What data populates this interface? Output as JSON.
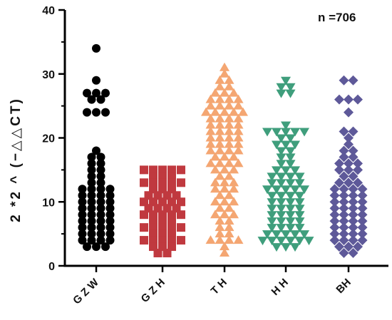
{
  "chart_data": {
    "type": "scatter",
    "title": "",
    "annotation": "n =706",
    "ylabel": "2 *2 ^ (−△△CT)",
    "xlabel": "",
    "ylim": [
      0,
      40
    ],
    "yticks": [
      "0",
      "10",
      "20",
      "30",
      "40"
    ],
    "grid": false,
    "categories": [
      "GZW",
      "GZH",
      "TH",
      "HH",
      "BH"
    ],
    "category_labels": [
      "G Z W",
      "G Z H",
      "T H",
      "H H",
      "BH"
    ],
    "series": [
      {
        "category": "GZW",
        "marker": "circle",
        "color": "#000000",
        "values": [
          34,
          29,
          27,
          27,
          27,
          26,
          26,
          24,
          24,
          24,
          18,
          17,
          17,
          16,
          16,
          15,
          15,
          14,
          14,
          13,
          13,
          12,
          12,
          12,
          12,
          11,
          11,
          11,
          11,
          10,
          10,
          10,
          10,
          9,
          9,
          9,
          9,
          8,
          8,
          8,
          8,
          7,
          7,
          7,
          7,
          6,
          6,
          6,
          6,
          5,
          5,
          5,
          5,
          4,
          4,
          4,
          4,
          3,
          3,
          3
        ]
      },
      {
        "category": "GZH",
        "marker": "square",
        "color": "#c0393f",
        "values": [
          15,
          15,
          15,
          15,
          15,
          14,
          14,
          14,
          13,
          13,
          13,
          13,
          13,
          12,
          12,
          12,
          11,
          11,
          11,
          11,
          10,
          10,
          10,
          10,
          10,
          9,
          9,
          9,
          9,
          8,
          8,
          8,
          8,
          8,
          7,
          7,
          7,
          6,
          6,
          6,
          6,
          6,
          5,
          5,
          5,
          4,
          4,
          4,
          4,
          4,
          3,
          3,
          3,
          2,
          2
        ]
      },
      {
        "category": "TH",
        "marker": "triangle-up",
        "color": "#f4a672",
        "values": [
          31,
          30,
          29,
          29,
          28,
          28,
          27,
          27,
          27,
          26,
          26,
          26,
          26,
          25,
          25,
          25,
          25,
          24,
          24,
          24,
          24,
          24,
          23,
          23,
          23,
          23,
          22,
          22,
          22,
          22,
          21,
          21,
          21,
          21,
          20,
          20,
          20,
          20,
          19,
          19,
          19,
          19,
          18,
          18,
          18,
          18,
          17,
          17,
          17,
          16,
          16,
          16,
          16,
          15,
          15,
          15,
          14,
          14,
          13,
          13,
          13,
          12,
          12,
          12,
          11,
          11,
          10,
          10,
          10,
          9,
          9,
          8,
          8,
          8,
          7,
          7,
          6,
          6,
          5,
          5,
          4,
          4,
          4,
          4,
          3,
          2
        ]
      },
      {
        "category": "HH",
        "marker": "triangle-down",
        "color": "#3f9e7c",
        "values": [
          29,
          28,
          28,
          27,
          27,
          22,
          21,
          21,
          21,
          21,
          21,
          20,
          20,
          19,
          19,
          19,
          18,
          18,
          17,
          17,
          16,
          16,
          15,
          15,
          15,
          14,
          14,
          14,
          14,
          13,
          13,
          13,
          13,
          12,
          12,
          12,
          12,
          12,
          11,
          11,
          11,
          11,
          10,
          10,
          10,
          10,
          9,
          9,
          9,
          9,
          8,
          8,
          8,
          8,
          7,
          7,
          7,
          7,
          6,
          6,
          6,
          6,
          5,
          5,
          5,
          5,
          5,
          4,
          4,
          4,
          4,
          4,
          4,
          3,
          3,
          3
        ]
      },
      {
        "category": "BH",
        "marker": "diamond",
        "color": "#5e5999",
        "values": [
          29,
          29,
          26,
          26,
          26,
          24,
          21,
          21,
          20,
          19,
          18,
          18,
          17,
          17,
          16,
          16,
          16,
          15,
          15,
          15,
          14,
          14,
          13,
          13,
          13,
          12,
          12,
          12,
          12,
          11,
          11,
          11,
          11,
          10,
          10,
          10,
          10,
          9,
          9,
          9,
          9,
          8,
          8,
          8,
          8,
          7,
          7,
          7,
          7,
          6,
          6,
          6,
          6,
          5,
          5,
          5,
          5,
          4,
          4,
          4,
          4,
          3,
          3,
          3,
          2,
          2
        ]
      }
    ]
  }
}
